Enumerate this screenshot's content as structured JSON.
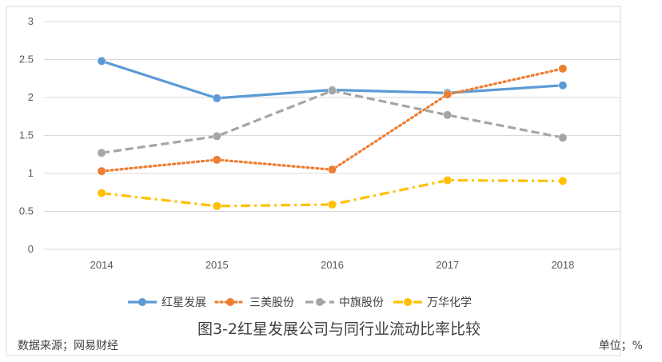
{
  "chart_data": {
    "type": "line",
    "x": [
      "2014",
      "2015",
      "2016",
      "2017",
      "2018"
    ],
    "ylim": [
      0,
      3
    ],
    "yticks": [
      "0",
      "0.5",
      "1",
      "1.5",
      "2",
      "2.5",
      "3"
    ],
    "grid": true,
    "legend_position": "bottom",
    "series": [
      {
        "name": "红星发展",
        "values": [
          2.48,
          1.99,
          2.1,
          2.06,
          2.16
        ],
        "color": "#5B9BD5",
        "style": "solid"
      },
      {
        "name": "三美股份",
        "values": [
          1.03,
          1.18,
          1.05,
          2.04,
          2.38
        ],
        "color": "#ED7D31",
        "style": "dotted"
      },
      {
        "name": "中旗股份",
        "values": [
          1.27,
          1.49,
          2.09,
          1.77,
          1.47
        ],
        "color": "#A5A5A5",
        "style": "dashed"
      },
      {
        "name": "万华化学",
        "values": [
          0.74,
          0.57,
          0.59,
          0.91,
          0.9
        ],
        "color": "#FFC000",
        "style": "dashdot"
      }
    ],
    "caption": "图3-2红星发展公司与同行业流动比率比较",
    "source": "数据来源；网易财经",
    "unit": "单位；%"
  }
}
